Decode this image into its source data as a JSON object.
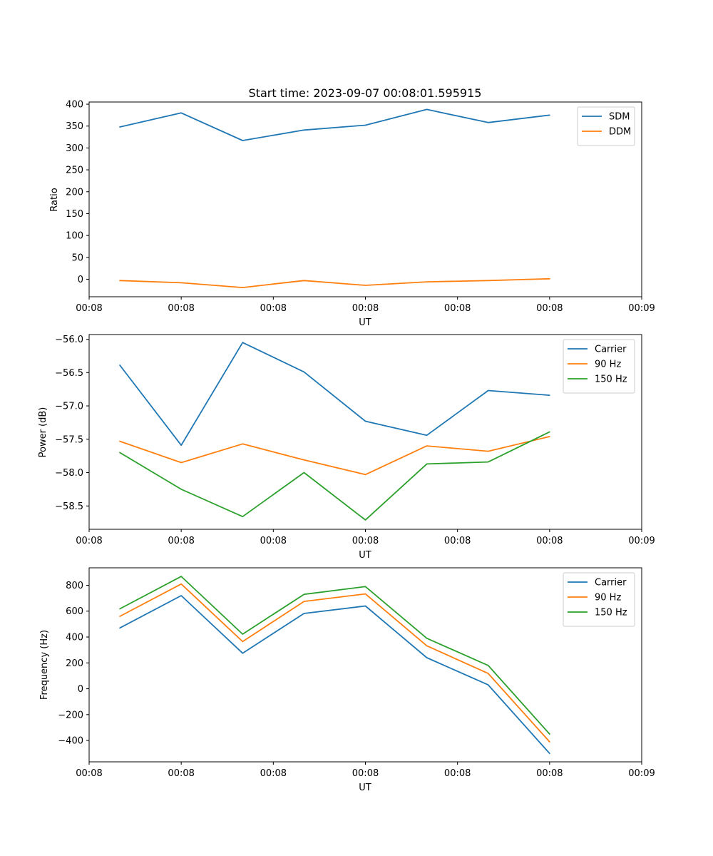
{
  "chart_data": [
    {
      "type": "line",
      "title": "Start time: 2023-09-07 00:08:01.595915",
      "xlabel": "UT",
      "ylabel": "Ratio",
      "xlim": [
        0,
        9
      ],
      "ylim": [
        -40,
        405
      ],
      "x": [
        0.5,
        1.5,
        2.5,
        3.5,
        4.5,
        5.5,
        6.5,
        7.5
      ],
      "xticks": [
        0,
        1.5,
        3,
        4.5,
        6,
        7.5,
        9
      ],
      "xtick_labels": [
        "00:08",
        "00:08",
        "00:08",
        "00:08",
        "00:08",
        "00:08",
        "00:09"
      ],
      "yticks": [
        0,
        50,
        100,
        150,
        200,
        250,
        300,
        350,
        400
      ],
      "ytick_labels": [
        "0",
        "50",
        "100",
        "150",
        "200",
        "250",
        "300",
        "350",
        "400"
      ],
      "legend_position": "top-right",
      "series": [
        {
          "name": "SDM",
          "color": "#1f77b4",
          "values": [
            348,
            380,
            317,
            341,
            352,
            388,
            358,
            375
          ]
        },
        {
          "name": "DDM",
          "color": "#ff7f0e",
          "values": [
            -3,
            -8,
            -19,
            -3,
            -14,
            -6,
            -3,
            1
          ]
        }
      ]
    },
    {
      "type": "line",
      "title": "",
      "xlabel": "UT",
      "ylabel": "Power (dB)",
      "xlim": [
        0,
        9
      ],
      "ylim": [
        -58.85,
        -55.93
      ],
      "x": [
        0.5,
        1.5,
        2.5,
        3.5,
        4.5,
        5.5,
        6.5,
        7.5
      ],
      "xticks": [
        0,
        1.5,
        3,
        4.5,
        6,
        7.5,
        9
      ],
      "xtick_labels": [
        "00:08",
        "00:08",
        "00:08",
        "00:08",
        "00:08",
        "00:08",
        "00:09"
      ],
      "yticks": [
        -58.5,
        -58.0,
        -57.5,
        -57.0,
        -56.5,
        -56.0
      ],
      "ytick_labels": [
        "−58.5",
        "−58.0",
        "−57.5",
        "−57.0",
        "−56.5",
        "−56.0"
      ],
      "legend_position": "top-right",
      "series": [
        {
          "name": "Carrier",
          "color": "#1f77b4",
          "values": [
            -56.39,
            -57.59,
            -56.05,
            -56.49,
            -57.23,
            -57.44,
            -56.77,
            -56.84
          ]
        },
        {
          "name": "90 Hz",
          "color": "#ff7f0e",
          "values": [
            -57.53,
            -57.85,
            -57.57,
            -57.81,
            -58.03,
            -57.6,
            -57.68,
            -57.46
          ]
        },
        {
          "name": "150 Hz",
          "color": "#2ca02c",
          "values": [
            -57.7,
            -58.25,
            -58.66,
            -58.0,
            -58.71,
            -57.87,
            -57.84,
            -57.39
          ]
        }
      ]
    },
    {
      "type": "line",
      "title": "",
      "xlabel": "UT",
      "ylabel": "Frequency (Hz)",
      "xlim": [
        0,
        9
      ],
      "ylim": [
        -565,
        935
      ],
      "x": [
        0.5,
        1.5,
        2.5,
        3.5,
        4.5,
        5.5,
        6.5,
        7.5
      ],
      "xticks": [
        0,
        1.5,
        3,
        4.5,
        6,
        7.5,
        9
      ],
      "xtick_labels": [
        "00:08",
        "00:08",
        "00:08",
        "00:08",
        "00:08",
        "00:08",
        "00:09"
      ],
      "yticks": [
        -400,
        -200,
        0,
        200,
        400,
        600,
        800
      ],
      "ytick_labels": [
        "−400",
        "−200",
        "0",
        "200",
        "400",
        "600",
        "800"
      ],
      "legend_position": "top-right",
      "series": [
        {
          "name": "Carrier",
          "color": "#1f77b4",
          "values": [
            470,
            720,
            275,
            582,
            640,
            240,
            30,
            -500
          ]
        },
        {
          "name": "90 Hz",
          "color": "#ff7f0e",
          "values": [
            560,
            810,
            365,
            675,
            733,
            332,
            118,
            -410
          ]
        },
        {
          "name": "150 Hz",
          "color": "#2ca02c",
          "values": [
            618,
            868,
            422,
            730,
            790,
            390,
            180,
            -350
          ]
        }
      ]
    }
  ]
}
